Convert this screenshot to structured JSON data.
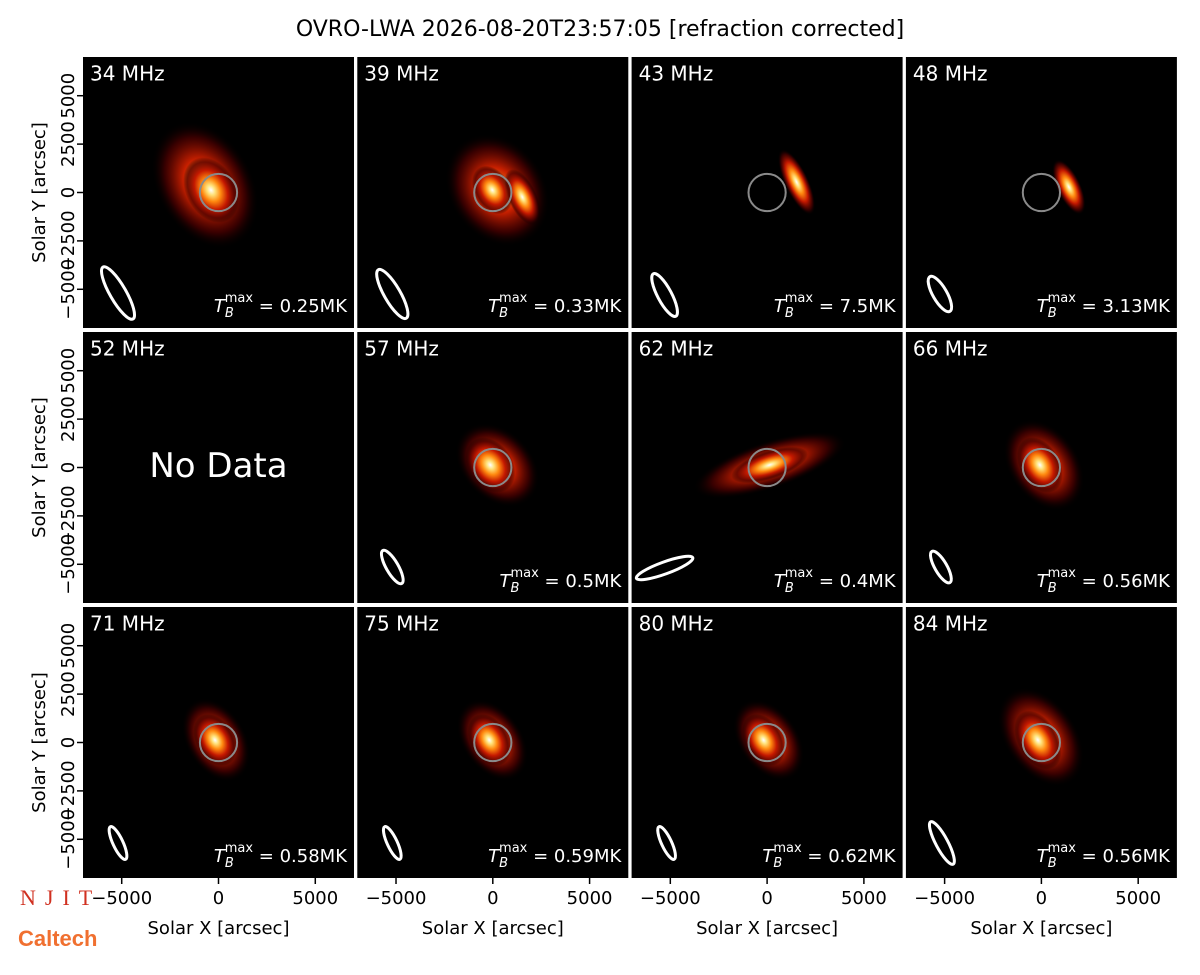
{
  "chart_data": {
    "type": "heatmap",
    "title": "OVRO-LWA 2026-08-20T23:57:05 [refraction corrected]",
    "xlabel": "Solar X [arcsec]",
    "ylabel": "Solar Y [arcsec]",
    "xlim": [
      -7000,
      7000
    ],
    "ylim": [
      -7000,
      7000
    ],
    "xticks": [
      {
        "value": -5000,
        "label": "−5000"
      },
      0,
      5000
    ],
    "yticks": [
      {
        "value": -5000,
        "label": "−5000"
      },
      {
        "value": -2500,
        "label": "−2500"
      },
      0,
      2500,
      5000
    ],
    "tb_symbol": "T",
    "tb_sub": "B",
    "tb_sup": "max",
    "panels": [
      {
        "label": "34 MHz",
        "tb_label": " = 0.25MK"
      },
      {
        "label": "39 MHz",
        "tb_label": " = 0.33MK"
      },
      {
        "label": "43 MHz",
        "tb_label": " = 7.5MK"
      },
      {
        "label": "48 MHz",
        "tb_label": " = 3.13MK"
      },
      {
        "label": "52 MHz",
        "note": "No Data"
      },
      {
        "label": "57 MHz",
        "tb_label": " = 0.5MK"
      },
      {
        "label": "62 MHz",
        "tb_label": " = 0.4MK"
      },
      {
        "label": "66 MHz",
        "tb_label": " = 0.56MK"
      },
      {
        "label": "71 MHz",
        "tb_label": " = 0.58MK"
      },
      {
        "label": "75 MHz",
        "tb_label": " = 0.59MK"
      },
      {
        "label": "80 MHz",
        "tb_label": " = 0.62MK"
      },
      {
        "label": "84 MHz",
        "tb_label": " = 0.56MK"
      }
    ],
    "logos": [
      "NJIT",
      "Caltech"
    ]
  }
}
